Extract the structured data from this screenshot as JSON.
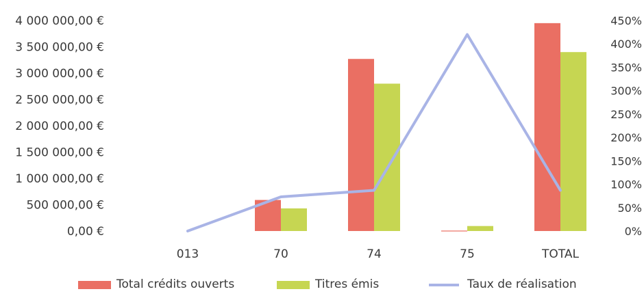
{
  "chart_data": {
    "type": "bar",
    "categories": [
      "013",
      "70",
      "74",
      "75",
      "TOTAL"
    ],
    "series": [
      {
        "name": "Total crédits ouverts",
        "kind": "bar",
        "axis": "left",
        "color": "#ea6f63",
        "values": [
          0,
          590000,
          3270000,
          8000,
          3950000
        ]
      },
      {
        "name": "Titres émis",
        "kind": "bar",
        "axis": "left",
        "color": "#c6d652",
        "values": [
          0,
          430000,
          2800000,
          95000,
          3400000
        ]
      },
      {
        "name": "Taux de réalisation",
        "kind": "line",
        "axis": "right",
        "color": "#a9b4e6",
        "values": [
          0.0,
          0.73,
          0.87,
          4.2,
          0.87
        ]
      }
    ],
    "y_left": {
      "min": 0,
      "max": 4000000,
      "ticks": [
        {
          "value": 0,
          "label": "0,00 €"
        },
        {
          "value": 500000,
          "label": "500 000,00 €"
        },
        {
          "value": 1000000,
          "label": "1 000 000,00 €"
        },
        {
          "value": 1500000,
          "label": "1 500 000,00 €"
        },
        {
          "value": 2000000,
          "label": "2 000 000,00 €"
        },
        {
          "value": 2500000,
          "label": "2 500 000,00 €"
        },
        {
          "value": 3000000,
          "label": "3 000 000,00 €"
        },
        {
          "value": 3500000,
          "label": "3 500 000,00 €"
        },
        {
          "value": 4000000,
          "label": "4 000 000,00 €"
        }
      ]
    },
    "y_right": {
      "min": 0,
      "max": 4.5,
      "ticks": [
        {
          "value": 0,
          "label": "0%"
        },
        {
          "value": 0.5,
          "label": "50%"
        },
        {
          "value": 1.0,
          "label": "100%"
        },
        {
          "value": 1.5,
          "label": "150%"
        },
        {
          "value": 2.0,
          "label": "200%"
        },
        {
          "value": 2.5,
          "label": "250%"
        },
        {
          "value": 3.0,
          "label": "300%"
        },
        {
          "value": 3.5,
          "label": "350%"
        },
        {
          "value": 4.0,
          "label": "400%"
        },
        {
          "value": 4.5,
          "label": "450%"
        }
      ]
    },
    "grid": false,
    "legend_position": "bottom"
  }
}
